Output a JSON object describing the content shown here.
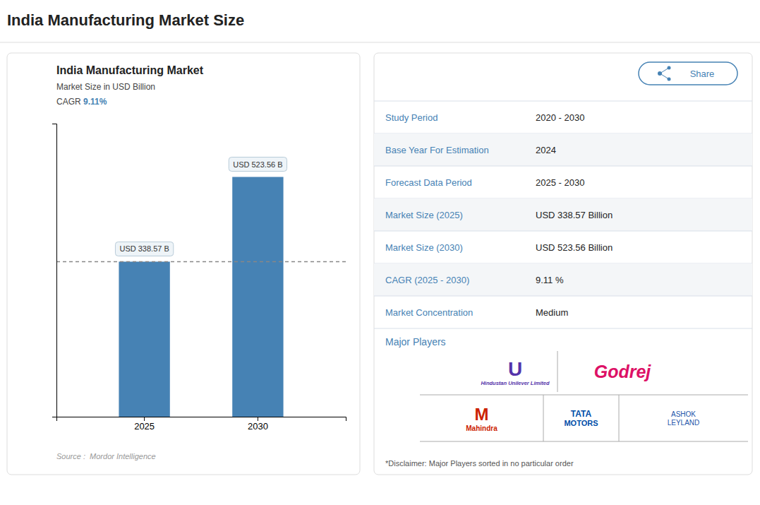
{
  "page_title": "India Manufacturing Market Size",
  "chart_data": {
    "type": "bar",
    "title": "India Manufacturing Market",
    "subtitle": "Market Size in USD Billion",
    "annotations": [
      "CAGR ",
      "9.11%"
    ],
    "categories": [
      "2025",
      "2030"
    ],
    "values": [
      338.57,
      523.56
    ],
    "value_labels": [
      "USD 338.57 B",
      "USD 523.56 B"
    ],
    "data_labels": true,
    "ylim": [
      0,
      640
    ],
    "yticks": [],
    "tick_labels": "x",
    "grid": false,
    "source": "Source :  Mordor Intelligence"
  },
  "share_label": "Share",
  "table_rows": [
    {
      "label": "Study Period",
      "value": "2020 - 2030"
    },
    {
      "label": "Base Year For Estimation",
      "value": "2024"
    },
    {
      "label": "Forecast Data Period",
      "value": "2025 - 2030"
    },
    {
      "label": "Market Size (2025)",
      "value": "USD 338.57 Billion"
    },
    {
      "label": "Market Size (2030)",
      "value": "USD 523.56 Billion"
    },
    {
      "label": "CAGR (2025 - 2030)",
      "value": "9.11 %"
    },
    {
      "label": "Market Concentration",
      "value": "Medium"
    }
  ],
  "major_players": {
    "label": "Major Players",
    "logos": [
      {
        "lines": [
          "U",
          "Hindustan Unilever Limited"
        ],
        "color": "#5533aa"
      },
      {
        "lines": [
          "Godrej"
        ],
        "color": "#dd1166"
      },
      {
        "lines": [
          "M",
          "Mahindra"
        ],
        "color": "#cc2200"
      },
      {
        "lines": [
          "TATA",
          "MOTORS"
        ],
        "color": "#004ea8"
      },
      {
        "lines": [
          "ASHOK",
          "LEYLAND"
        ],
        "color": "#2255aa"
      }
    ]
  },
  "disclaimer": "*Disclaimer: Major Players sorted in no particular order"
}
